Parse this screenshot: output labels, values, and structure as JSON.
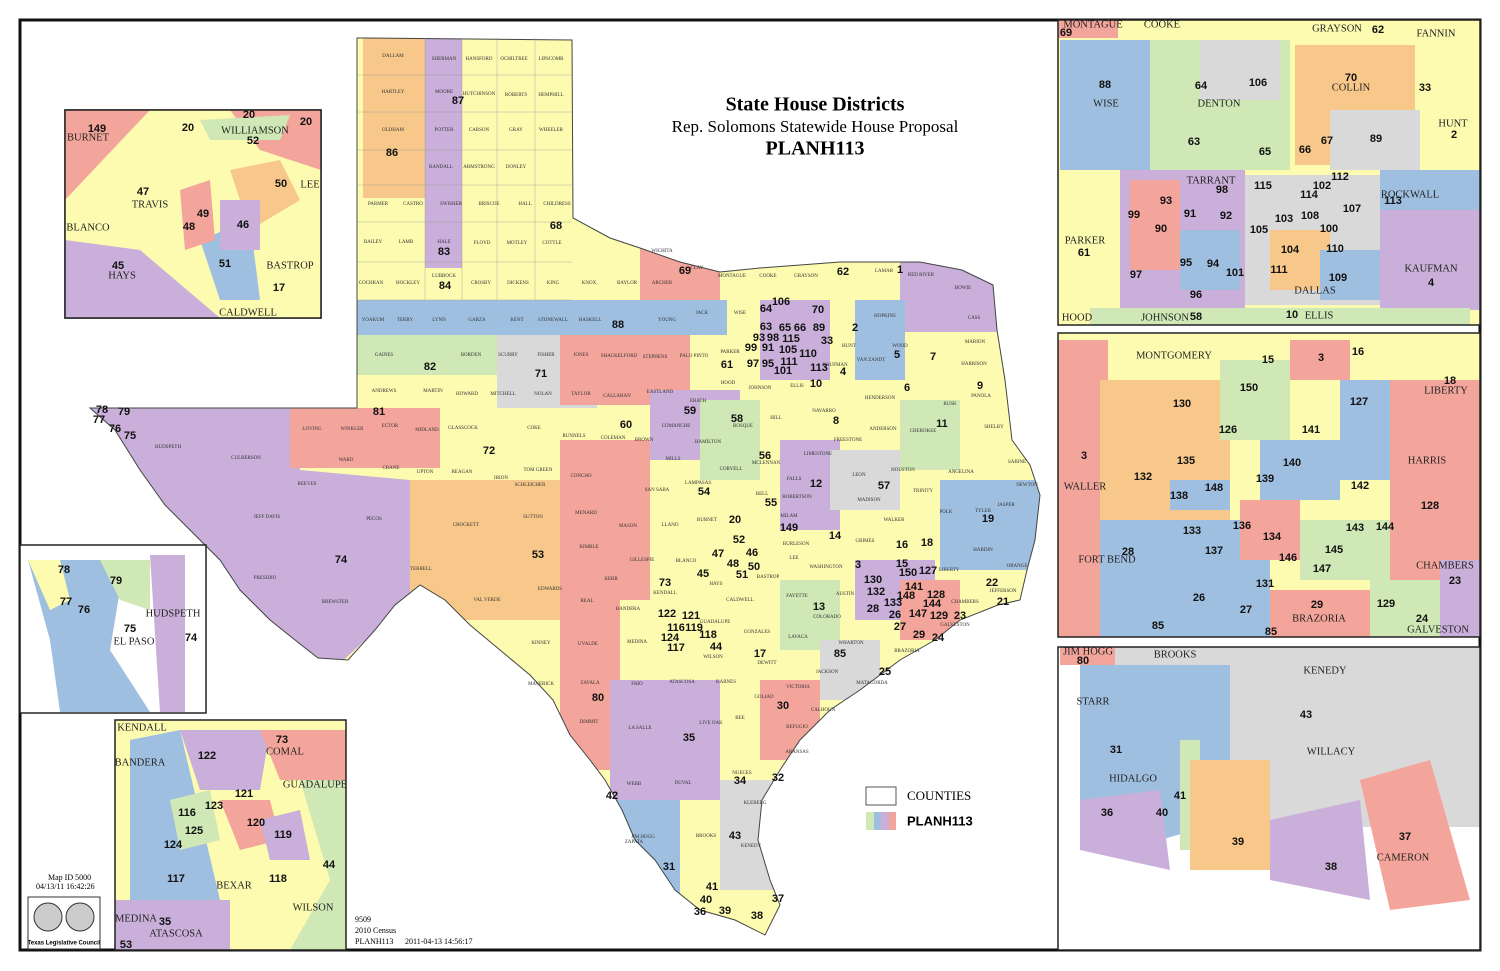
{
  "header": {
    "title": "State House Districts",
    "subtitle": "Rep. Solomons Statewide House Proposal",
    "plan": "PLANH113"
  },
  "legend": {
    "counties": "COUNTIES",
    "plan": "PLANH113"
  },
  "info": {
    "map_id": "Map ID 5000",
    "timestamp": "04/13/11 16:42:26",
    "council": "Texas Legislative Council",
    "code": "9509",
    "census": "2010 Census",
    "plan": "PLANH113",
    "date": "2011-04-13 14:56:17"
  },
  "main_map": {
    "districts": [
      "1",
      "2",
      "3",
      "4",
      "5",
      "6",
      "7",
      "8",
      "9",
      "10",
      "11",
      "12",
      "13",
      "14",
      "15",
      "16",
      "17",
      "18",
      "19",
      "20",
      "21",
      "22",
      "23",
      "24",
      "25",
      "26",
      "27",
      "28",
      "29",
      "30",
      "31",
      "32",
      "33",
      "34",
      "35",
      "36",
      "37",
      "38",
      "39",
      "40",
      "41",
      "42",
      "43",
      "44",
      "45",
      "46",
      "47",
      "48",
      "50",
      "51",
      "52",
      "53",
      "54",
      "55",
      "56",
      "57",
      "58",
      "59",
      "60",
      "61",
      "62",
      "63",
      "64",
      "65",
      "66",
      "68",
      "69",
      "70",
      "71",
      "72",
      "73",
      "74",
      "75",
      "76",
      "77",
      "78",
      "79",
      "80",
      "81",
      "82",
      "83",
      "84",
      "85",
      "86",
      "87",
      "88",
      "89",
      "106",
      "93",
      "98",
      "115",
      "99",
      "91",
      "105",
      "110",
      "97",
      "95",
      "111",
      "113",
      "101",
      "149",
      "122",
      "121",
      "116",
      "119",
      "124",
      "117",
      "118",
      "130",
      "132",
      "150",
      "127",
      "141",
      "148",
      "133",
      "128",
      "144",
      "147",
      "129"
    ],
    "counties": [
      "DALLAM",
      "SHERMAN",
      "HANSFORD",
      "OCHILTREE",
      "LIPSCOMB",
      "HARTLEY",
      "MOORE",
      "HUTCHINSON",
      "ROBERTS",
      "HEMPHILL",
      "OLDHAM",
      "POTTER",
      "CARSON",
      "GRAY",
      "WHEELER",
      "RANDALL",
      "ARMSTRONG",
      "DONLEY",
      "PARMER",
      "CASTRO",
      "SWISHER",
      "BRISCOE",
      "HALL",
      "CHILDRESS",
      "BAILEY",
      "LAMB",
      "HALE",
      "FLOYD",
      "MOTLEY",
      "COTTLE",
      "COCHRAN",
      "HOCKLEY",
      "LUBBOCK",
      "CROSBY",
      "DICKENS",
      "KING",
      "KNOX",
      "BAYLOR",
      "ARCHER",
      "WICHITA",
      "CLAY",
      "MONTAGUE",
      "COOKE",
      "GRAYSON",
      "LAMAR",
      "BOWIE",
      "YOAKUM",
      "TERRY",
      "LYNN",
      "GARZA",
      "KENT",
      "STONEWALL",
      "HASKELL",
      "YOUNG",
      "JACK",
      "WISE",
      "GAINES",
      "BORDEN",
      "SCURRY",
      "FISHER",
      "JONES",
      "SHACKELFORD",
      "STEPHENS",
      "PARKER",
      "ANDREWS",
      "MARTIN",
      "HOWARD",
      "MITCHELL",
      "NOLAN",
      "TAYLOR",
      "CALLAHAN",
      "EASTLAND",
      "HOOD",
      "JOHNSON",
      "ELLIS",
      "KAUFMAN",
      "HUNT",
      "HENDERSON",
      "LOVING",
      "WINKLER",
      "ECTOR",
      "MIDLAND",
      "GLASSCOCK",
      "COKE",
      "RUNNELS",
      "COLEMAN",
      "BROWN",
      "HUDSPETH",
      "CULBERSON",
      "REEVES",
      "WARD",
      "CRANE",
      "UPTON",
      "REAGAN",
      "IRION",
      "CONCHO",
      "PECOS",
      "PRESIDIO",
      "BREWSTER",
      "TERRELL",
      "CROCKETT",
      "SUTTON",
      "SCHLEICHER",
      "MENARD",
      "KIMBLE",
      "EDWARDS",
      "KINNEY",
      "UVALDE",
      "MEDINA",
      "MAVERICK",
      "ZAVALA",
      "FRIO",
      "DIMMIT",
      "WEBB",
      "DUVAL",
      "ZAPATA",
      "BROOKS",
      "KENEDY",
      "KLEBERG",
      "NUECES",
      "BEE",
      "GOLIAD",
      "VICTORIA",
      "CALHOUN",
      "REFUGIO",
      "ARANSAS",
      "JACKSON",
      "MATAGORDA",
      "WHARTON",
      "BRAZORIA",
      "GALVESTON",
      "CHAMBERS",
      "JEFFERSON",
      "ORANGE",
      "HARDIN",
      "LIBERTY",
      "POLK",
      "TYLER",
      "JASPER",
      "NEWTON",
      "ATASCOSA",
      "KARNES",
      "WILSON",
      "GUADALUPE",
      "GONZALES",
      "DEWITT",
      "LAVACA",
      "FAYETTE",
      "COLORADO",
      "AUSTIN",
      "WASHINGTON",
      "BURLESON",
      "GRIMES",
      "WALKER",
      "MADISON",
      "LEON",
      "ROBERTSON",
      "MILAM",
      "FALLS",
      "LEE",
      "CALDWELL",
      "HAYS",
      "BASTROP",
      "BELL",
      "MCLENNAN",
      "NAVARRO",
      "FREESTONE",
      "LIMESTONE",
      "ANDERSON",
      "CHEROKEE",
      "HOUSTON",
      "TRINITY",
      "ANGELINA",
      "SHELBY",
      "SABINE",
      "RUSK",
      "PANOLA",
      "HARRISON",
      "MARION",
      "CASS",
      "HOPKINS",
      "WOOD",
      "KENDALL",
      "KERR",
      "BANDERA",
      "REAL",
      "GILLESPIE",
      "BLANCO",
      "BURNET",
      "LLANO",
      "MASON",
      "MILLS",
      "LAMPASAS",
      "CORYELL",
      "HAMILTON",
      "COMANCHE",
      "BOSQUE",
      "HILL",
      "ERATH",
      "TOM GREEN",
      "VAL VERDE",
      "LA SALLE",
      "SAN SABA",
      "PALO PINTO",
      "JEFF DAVIS",
      "LIVE OAK",
      "JIM HOGG",
      "VAN ZANDT",
      "RED RIVER"
    ]
  },
  "insets": {
    "dfw": {
      "counties": [
        "MONTAGUE",
        "COOKE",
        "GRAYSON",
        "FANNIN",
        "WISE",
        "DENTON",
        "COLLIN",
        "HUNT",
        "TARRANT",
        "ROCKWALL",
        "PARKER",
        "DALLAS",
        "KAUFMAN",
        "HOOD",
        "JOHNSON",
        "ELLIS"
      ],
      "districts": [
        "69",
        "62",
        "88",
        "64",
        "106",
        "70",
        "33",
        "63",
        "65",
        "66",
        "67",
        "89",
        "2",
        "98",
        "112",
        "102",
        "115",
        "93",
        "91",
        "92",
        "114",
        "107",
        "113",
        "99",
        "90",
        "103",
        "108",
        "100",
        "105",
        "104",
        "110",
        "61",
        "95",
        "94",
        "101",
        "111",
        "97",
        "109",
        "4",
        "96",
        "58",
        "10"
      ]
    },
    "houston": {
      "counties": [
        "MONTGOMERY",
        "LIBERTY",
        "HARRIS",
        "WALLER",
        "FORT BEND",
        "CHAMBERS",
        "BRAZORIA",
        "GALVESTON"
      ],
      "districts": [
        "15",
        "3",
        "16",
        "18",
        "130",
        "150",
        "127",
        "126",
        "141",
        "3",
        "140",
        "135",
        "132",
        "139",
        "148",
        "142",
        "128",
        "138",
        "136",
        "143",
        "144",
        "133",
        "134",
        "137",
        "146",
        "145",
        "147",
        "131",
        "28",
        "26",
        "27",
        "29",
        "85",
        "85",
        "129",
        "23",
        "24"
      ]
    },
    "valley": {
      "counties": [
        "JIM HOGG",
        "BROOKS",
        "KENEDY",
        "STARR",
        "HIDALGO",
        "WILLACY",
        "CAMERON"
      ],
      "districts": [
        "80",
        "43",
        "31",
        "41",
        "40",
        "36",
        "39",
        "37",
        "38"
      ]
    },
    "austin": {
      "counties": [
        "BURNET",
        "WILLIAMSON",
        "TRAVIS",
        "BLANCO",
        "HAYS",
        "BASTROP",
        "CALDWELL",
        "LEE"
      ],
      "districts": [
        "149",
        "20",
        "20",
        "52",
        "20",
        "47",
        "49",
        "48",
        "46",
        "50",
        "51",
        "45",
        "17"
      ]
    },
    "el_paso": {
      "counties": [
        "EL PASO",
        "HUDSPETH"
      ],
      "districts": [
        "78",
        "79",
        "77",
        "76",
        "75",
        "74"
      ]
    },
    "san_antonio": {
      "counties": [
        "KENDALL",
        "COMAL",
        "BANDERA",
        "GUADALUPE",
        "BEXAR",
        "MEDINA",
        "ATASCOSA",
        "WILSON"
      ],
      "districts": [
        "73",
        "122",
        "121",
        "123",
        "116",
        "120",
        "119",
        "125",
        "124",
        "117",
        "118",
        "44",
        "35",
        "53"
      ]
    }
  }
}
